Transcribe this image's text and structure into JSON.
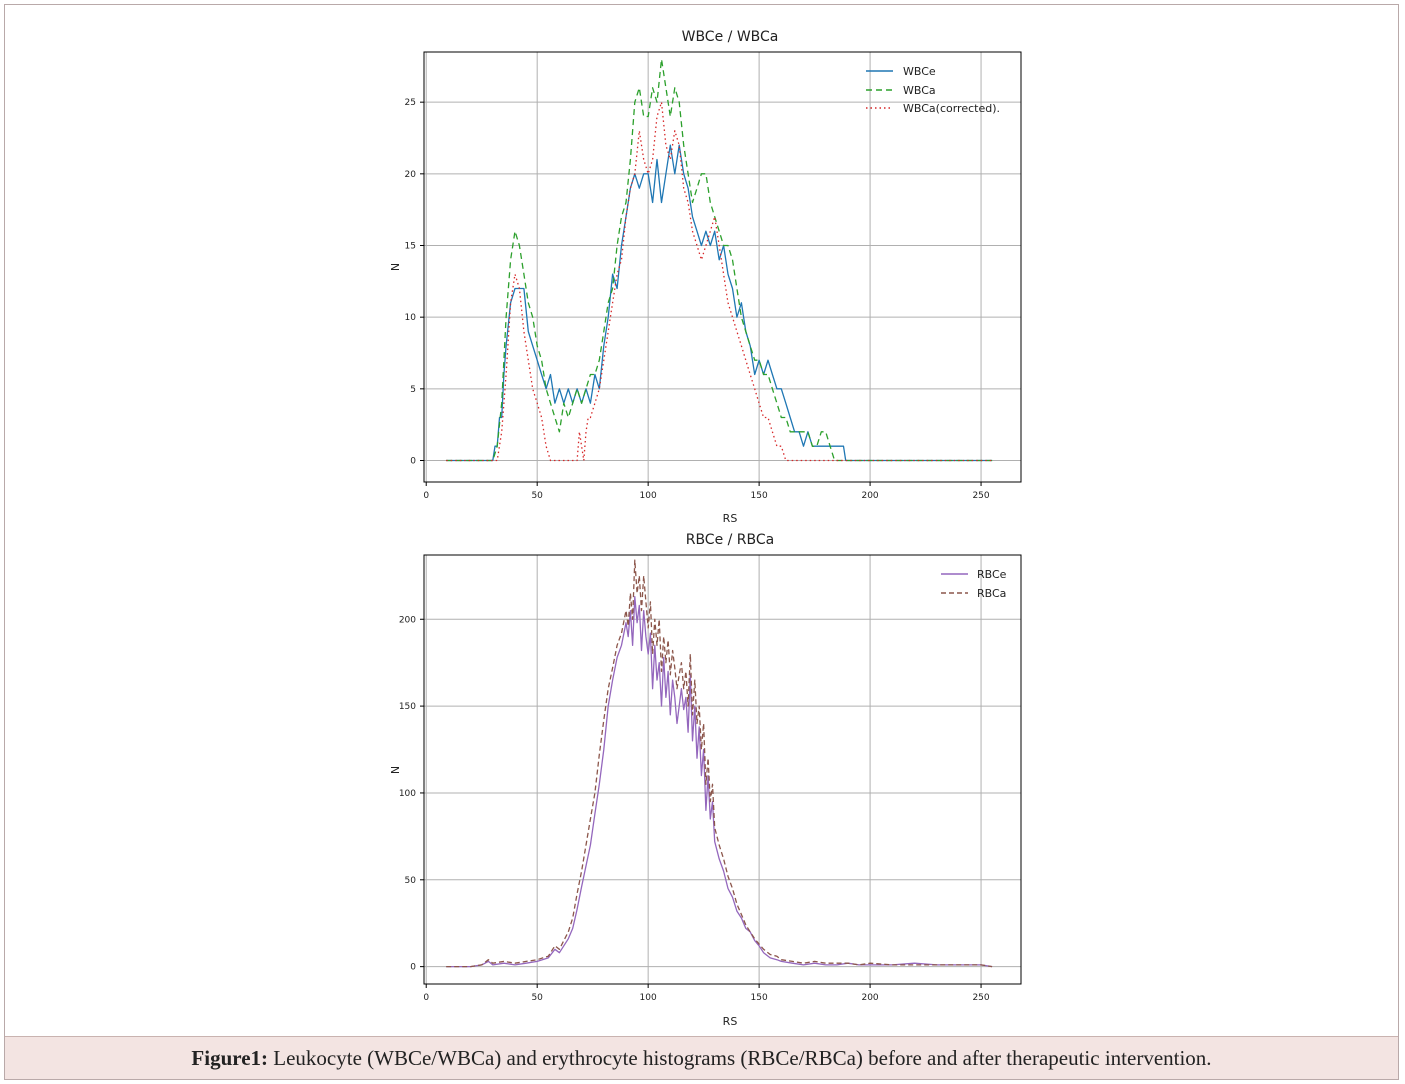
{
  "caption": {
    "label": "Figure1:",
    "text": " Leukocyte (WBCe/WBCa) and erythrocyte histograms (RBCe/RBCa) before and after therapeutic intervention."
  },
  "chart_data": [
    {
      "type": "line",
      "title": "WBCe / WBCa",
      "xlabel": "RS",
      "ylabel": "N",
      "xlim": [
        -1,
        268
      ],
      "ylim": [
        -1.5,
        28.5
      ],
      "xticks": [
        0,
        50,
        100,
        150,
        200,
        250
      ],
      "yticks": [
        0,
        5,
        10,
        15,
        20,
        25
      ],
      "grid": true,
      "legend": "top-right",
      "series": [
        {
          "name": "WBCe",
          "color": "#1f77b4",
          "dash": "solid",
          "x": [
            9,
            30,
            31,
            32,
            33,
            34,
            35,
            36,
            38,
            40,
            42,
            44,
            46,
            48,
            50,
            52,
            54,
            56,
            58,
            60,
            62,
            64,
            66,
            68,
            70,
            72,
            74,
            76,
            78,
            80,
            82,
            84,
            86,
            88,
            90,
            92,
            94,
            96,
            98,
            100,
            102,
            104,
            106,
            108,
            110,
            112,
            114,
            116,
            118,
            120,
            122,
            124,
            126,
            128,
            130,
            132,
            134,
            136,
            138,
            140,
            142,
            144,
            146,
            148,
            150,
            152,
            154,
            156,
            158,
            160,
            162,
            164,
            166,
            168,
            170,
            172,
            174,
            176,
            178,
            180,
            182,
            184,
            186,
            188,
            189,
            200,
            255
          ],
          "y": [
            0,
            0,
            1,
            1,
            3,
            3,
            6,
            8,
            11,
            12,
            12,
            12,
            9,
            8,
            7,
            6,
            5,
            6,
            4,
            5,
            4,
            5,
            4,
            5,
            4,
            5,
            4,
            6,
            5,
            8,
            10,
            13,
            12,
            15,
            17,
            19,
            20,
            19,
            20,
            20,
            18,
            21,
            18,
            20,
            22,
            20,
            22,
            20,
            19,
            17,
            16,
            15,
            16,
            15,
            16,
            14,
            15,
            13,
            12,
            10,
            11,
            9,
            8,
            6,
            7,
            6,
            7,
            6,
            5,
            5,
            4,
            3,
            2,
            2,
            1,
            2,
            1,
            1,
            1,
            1,
            1,
            1,
            1,
            1,
            0,
            0,
            0
          ]
        },
        {
          "name": "WBCa",
          "color": "#2ca02c",
          "dash": "6,4",
          "x": [
            9,
            30,
            32,
            34,
            36,
            38,
            40,
            42,
            44,
            46,
            48,
            50,
            52,
            54,
            56,
            58,
            60,
            62,
            64,
            66,
            68,
            70,
            72,
            74,
            76,
            78,
            80,
            82,
            84,
            86,
            88,
            90,
            92,
            94,
            96,
            98,
            100,
            102,
            104,
            106,
            108,
            110,
            112,
            114,
            116,
            118,
            120,
            122,
            124,
            126,
            128,
            130,
            132,
            134,
            136,
            138,
            140,
            142,
            144,
            146,
            148,
            150,
            152,
            154,
            156,
            158,
            160,
            162,
            164,
            166,
            168,
            170,
            172,
            174,
            176,
            178,
            180,
            182,
            184,
            200,
            255
          ],
          "y": [
            0,
            0,
            1,
            4,
            10,
            14,
            16,
            15,
            13,
            11,
            10,
            8,
            7,
            5,
            4,
            3,
            2,
            4,
            3,
            4,
            5,
            4,
            5,
            6,
            6,
            7,
            9,
            11,
            12,
            15,
            17,
            18,
            21,
            25,
            26,
            24,
            24,
            26,
            25,
            28,
            26,
            24,
            26,
            25,
            22,
            20,
            18,
            19,
            20,
            20,
            18,
            17,
            16,
            15,
            15,
            14,
            12,
            10,
            9,
            8,
            7,
            7,
            6,
            6,
            5,
            4,
            3,
            3,
            2,
            2,
            2,
            2,
            2,
            1,
            1,
            2,
            2,
            1,
            0,
            0,
            0
          ]
        },
        {
          "name": "WBCa(corrected).",
          "color": "#d62728",
          "dash": "1.5,3",
          "x": [
            9,
            32,
            34,
            36,
            38,
            40,
            42,
            44,
            46,
            48,
            50,
            52,
            54,
            56,
            58,
            68,
            69,
            70,
            71,
            72,
            73,
            74,
            76,
            78,
            80,
            82,
            84,
            86,
            88,
            90,
            92,
            94,
            96,
            98,
            100,
            102,
            104,
            106,
            108,
            110,
            112,
            114,
            116,
            118,
            120,
            122,
            124,
            126,
            128,
            130,
            132,
            134,
            136,
            138,
            140,
            142,
            144,
            146,
            148,
            150,
            152,
            154,
            156,
            158,
            160,
            162,
            164,
            200,
            255
          ],
          "y": [
            0,
            0,
            2,
            6,
            11,
            13,
            12,
            9,
            7,
            5,
            4,
            3,
            1,
            0,
            0,
            0,
            2,
            1,
            0,
            2,
            3,
            3,
            4,
            5,
            7,
            9,
            11,
            13,
            14,
            17,
            19,
            20,
            23,
            21,
            20,
            21,
            24,
            25,
            22,
            21,
            23,
            22,
            19,
            18,
            16,
            15,
            14,
            15,
            16,
            17,
            15,
            13,
            11,
            10,
            9,
            8,
            7,
            6,
            5,
            4,
            3,
            3,
            2,
            1,
            1,
            0,
            0,
            0,
            0
          ]
        }
      ]
    },
    {
      "type": "line",
      "title": "RBCe / RBCa",
      "xlabel": "RS",
      "ylabel": "N",
      "xlim": [
        -1,
        268
      ],
      "ylim": [
        -10,
        237
      ],
      "xticks": [
        0,
        50,
        100,
        150,
        200,
        250
      ],
      "yticks": [
        0,
        50,
        100,
        150,
        200
      ],
      "grid": true,
      "legend": "top-right",
      "series": [
        {
          "name": "RBCe",
          "color": "#9467bd",
          "dash": "solid",
          "x": [
            9,
            20,
            25,
            28,
            30,
            35,
            40,
            45,
            50,
            55,
            58,
            60,
            62,
            64,
            66,
            68,
            70,
            72,
            74,
            76,
            78,
            80,
            82,
            84,
            86,
            88,
            90,
            91,
            92,
            93,
            94,
            95,
            96,
            97,
            98,
            99,
            100,
            101,
            102,
            103,
            104,
            105,
            106,
            107,
            108,
            109,
            110,
            111,
            112,
            113,
            114,
            115,
            116,
            117,
            118,
            119,
            120,
            121,
            122,
            123,
            124,
            125,
            126,
            127,
            128,
            129,
            130,
            132,
            134,
            136,
            138,
            140,
            142,
            144,
            146,
            148,
            150,
            152,
            155,
            158,
            160,
            165,
            170,
            175,
            180,
            185,
            190,
            195,
            200,
            210,
            220,
            230,
            240,
            250,
            255
          ],
          "y": [
            0,
            0,
            1,
            3,
            1,
            2,
            1,
            2,
            3,
            5,
            10,
            8,
            12,
            16,
            22,
            33,
            46,
            58,
            70,
            88,
            105,
            125,
            150,
            165,
            178,
            185,
            198,
            190,
            205,
            185,
            213,
            198,
            208,
            182,
            205,
            190,
            180,
            192,
            160,
            185,
            165,
            175,
            150,
            178,
            155,
            170,
            145,
            165,
            155,
            140,
            150,
            160,
            148,
            155,
            135,
            168,
            130,
            150,
            120,
            138,
            110,
            125,
            90,
            110,
            85,
            95,
            72,
            62,
            55,
            45,
            40,
            32,
            28,
            22,
            20,
            15,
            12,
            8,
            5,
            4,
            3,
            2,
            1,
            2,
            1,
            1,
            2,
            1,
            1,
            1,
            2,
            1,
            1,
            1,
            0
          ]
        },
        {
          "name": "RBCa",
          "color": "#8c564b",
          "dash": "5,3",
          "x": [
            9,
            20,
            25,
            28,
            30,
            35,
            40,
            45,
            50,
            55,
            58,
            60,
            62,
            64,
            66,
            68,
            70,
            72,
            74,
            76,
            78,
            80,
            82,
            84,
            86,
            88,
            90,
            91,
            92,
            93,
            94,
            95,
            96,
            97,
            98,
            99,
            100,
            101,
            102,
            103,
            104,
            105,
            106,
            107,
            108,
            109,
            110,
            111,
            112,
            113,
            114,
            115,
            116,
            117,
            118,
            119,
            120,
            121,
            122,
            123,
            124,
            125,
            126,
            127,
            128,
            129,
            130,
            132,
            134,
            136,
            138,
            140,
            142,
            144,
            146,
            148,
            150,
            152,
            155,
            158,
            160,
            165,
            170,
            175,
            180,
            185,
            190,
            195,
            200,
            210,
            220,
            230,
            240,
            250,
            255
          ],
          "y": [
            0,
            0,
            1,
            4,
            2,
            3,
            2,
            3,
            4,
            6,
            12,
            10,
            15,
            20,
            28,
            42,
            55,
            70,
            85,
            100,
            122,
            142,
            160,
            172,
            185,
            192,
            205,
            196,
            215,
            200,
            234,
            215,
            225,
            205,
            225,
            210,
            195,
            210,
            180,
            200,
            185,
            200,
            170,
            190,
            175,
            188,
            168,
            182,
            172,
            160,
            168,
            175,
            160,
            170,
            150,
            180,
            145,
            165,
            140,
            150,
            125,
            140,
            105,
            120,
            95,
            105,
            80,
            70,
            62,
            52,
            45,
            36,
            30,
            24,
            20,
            16,
            13,
            10,
            7,
            6,
            4,
            3,
            2,
            3,
            2,
            2,
            2,
            1,
            2,
            1,
            1,
            1,
            1,
            1,
            0
          ]
        }
      ]
    }
  ]
}
